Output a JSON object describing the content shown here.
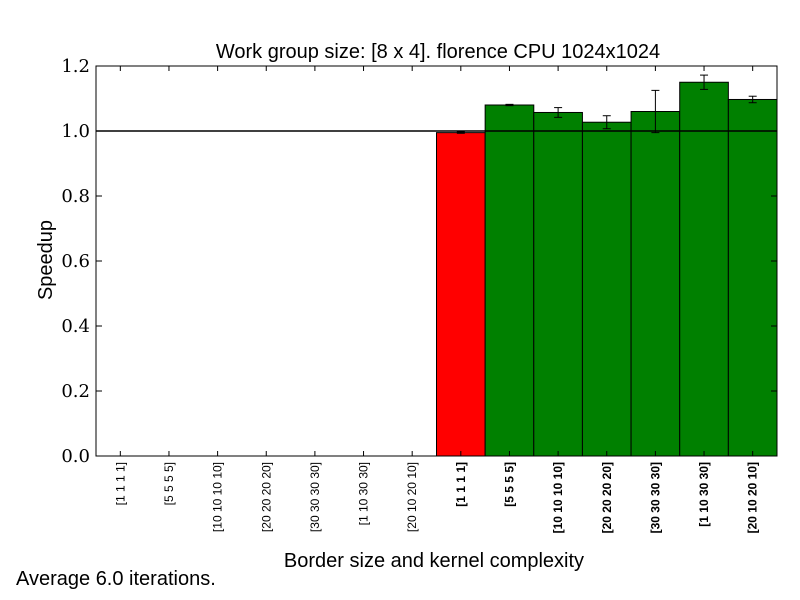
{
  "chart_data": {
    "type": "bar",
    "title": "Work group size: [8 x 4]. florence CPU 1024x1024",
    "xlabel": "Border size and kernel complexity",
    "ylabel": "Speedup",
    "ylim": [
      0.0,
      1.2
    ],
    "yticks": [
      "0.0",
      "0.2",
      "0.4",
      "0.6",
      "0.8",
      "1.0",
      "1.2"
    ],
    "ytick_values": [
      0.0,
      0.2,
      0.4,
      0.6,
      0.8,
      1.0,
      1.2
    ],
    "reference_line": 1.0,
    "categories": [
      "[1 1 1 1]",
      "[5 5 5 5]",
      "[10 10 10 10]",
      "[20 20 20 20]",
      "[30 30 30 30]",
      "[1 10 30 30]",
      "[20 10 20 10]",
      "[1 1 1 1]",
      "[5 5 5 5]",
      "[10 10 10 10]",
      "[20 20 20 20]",
      "[30 30 30 30]",
      "[1 10 30 30]",
      "[20 10 20 10]"
    ],
    "bold_categories": [
      false,
      false,
      false,
      false,
      false,
      false,
      false,
      true,
      true,
      true,
      true,
      true,
      true,
      true
    ],
    "values": [
      null,
      null,
      null,
      null,
      null,
      null,
      null,
      0.995,
      1.08,
      1.057,
      1.027,
      1.06,
      1.15,
      1.097
    ],
    "errors": [
      null,
      null,
      null,
      null,
      null,
      null,
      null,
      0.002,
      0.002,
      0.015,
      0.02,
      0.065,
      0.022,
      0.01
    ],
    "bar_colors": [
      "",
      "",
      "",
      "",
      "",
      "",
      "",
      "#ff0000",
      "#008000",
      "#008000",
      "#008000",
      "#008000",
      "#008000",
      "#008000"
    ],
    "grid": false,
    "legend": "none"
  },
  "footnote": "Average 6.0 iterations."
}
